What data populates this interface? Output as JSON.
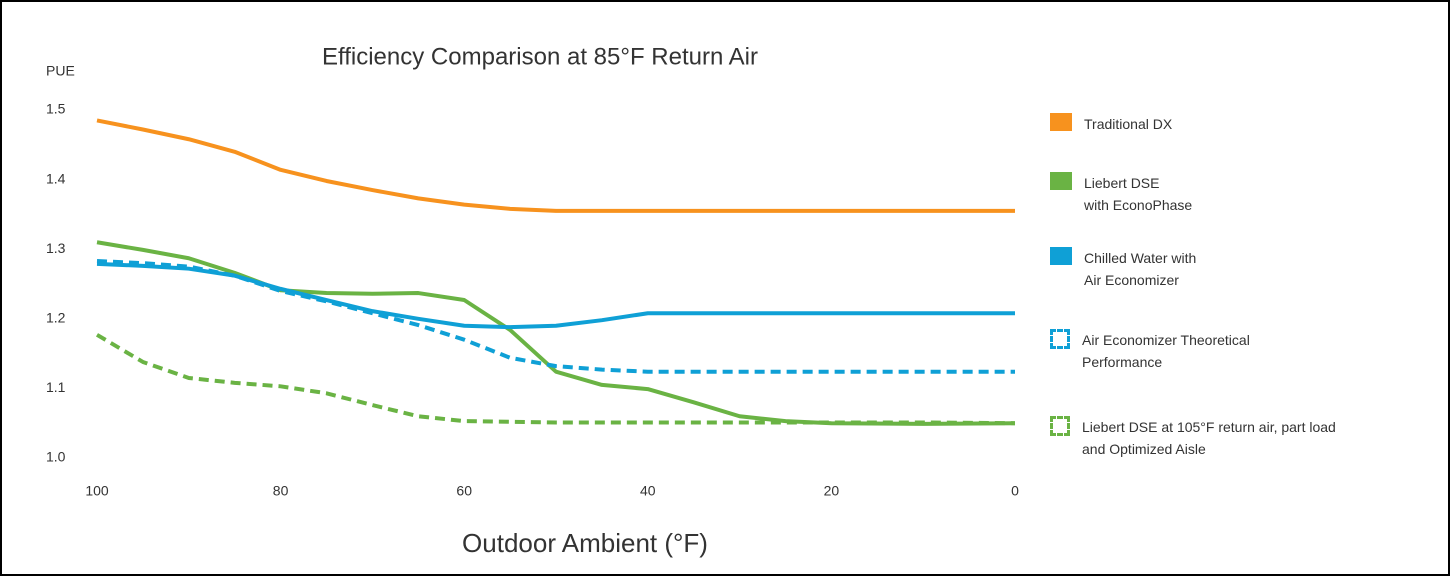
{
  "chart_data": {
    "type": "line",
    "title": "Efficiency Comparison at 85°F Return Air",
    "y_label": "PUE",
    "x_label": "Outdoor Ambient (°F)",
    "x": [
      100,
      95,
      90,
      85,
      80,
      75,
      70,
      65,
      60,
      55,
      50,
      45,
      40,
      35,
      30,
      25,
      20,
      10,
      0
    ],
    "xlim": [
      100,
      0
    ],
    "xticks": [
      100,
      80,
      60,
      40,
      20,
      0
    ],
    "ylim": [
      1.0,
      1.5
    ],
    "yticks": [
      {
        "value": 1.0,
        "label": "1.0"
      },
      1.1,
      1.2,
      1.3,
      1.4,
      1.5
    ],
    "grid": false,
    "legend": "right",
    "series": [
      {
        "name": "Traditional DX",
        "color": "#f7921e",
        "style": "solid",
        "values": [
          1.485,
          1.472,
          1.458,
          1.44,
          1.414,
          1.398,
          1.385,
          1.373,
          1.364,
          1.358,
          1.355,
          1.355,
          1.355,
          1.355,
          1.355,
          1.355,
          1.355,
          1.355,
          1.355
        ]
      },
      {
        "name": "Liebert DSE\nwith EconoPhase",
        "color": "#6ab344",
        "style": "solid",
        "values": [
          1.31,
          1.299,
          1.287,
          1.266,
          1.241,
          1.237,
          1.236,
          1.237,
          1.227,
          1.184,
          1.124,
          1.105,
          1.099,
          1.08,
          1.06,
          1.053,
          1.05,
          1.049,
          1.05
        ]
      },
      {
        "name": "Chilled Water with\nAir Economizer",
        "color": "#0fa0d6",
        "style": "solid",
        "values": [
          1.279,
          1.276,
          1.272,
          1.262,
          1.243,
          1.227,
          1.211,
          1.2,
          1.19,
          1.188,
          1.19,
          1.198,
          1.208,
          1.208,
          1.208,
          1.208,
          1.208,
          1.208,
          1.208
        ]
      },
      {
        "name": "Air Economizer Theoretical\nPerformance",
        "color": "#0fa0d6",
        "style": "dashed",
        "values": [
          1.283,
          1.28,
          1.275,
          1.262,
          1.24,
          1.225,
          1.208,
          1.191,
          1.17,
          1.144,
          1.132,
          1.127,
          1.124,
          1.124,
          1.124,
          1.124,
          1.124,
          1.124,
          1.124
        ]
      },
      {
        "name": "Liebert DSE at 105°F return air, part load\nand Optimized Aisle",
        "color": "#6ab344",
        "style": "dashed",
        "values": [
          1.177,
          1.138,
          1.115,
          1.108,
          1.103,
          1.093,
          1.076,
          1.06,
          1.053,
          1.052,
          1.051,
          1.051,
          1.051,
          1.051,
          1.051,
          1.051,
          1.051,
          1.051,
          1.05
        ]
      }
    ]
  }
}
